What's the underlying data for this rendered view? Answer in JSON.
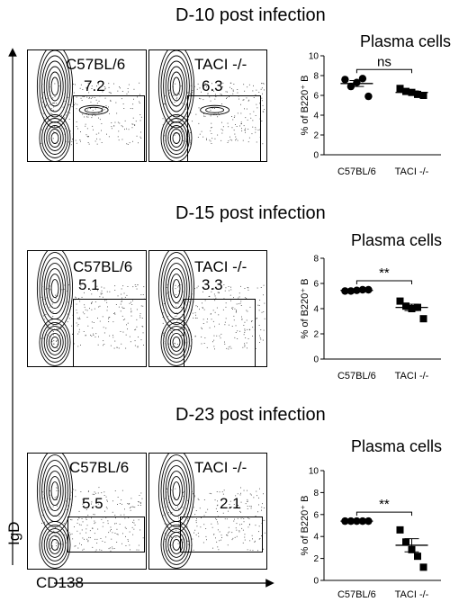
{
  "axes": {
    "y_label": "IgD",
    "x_label": "CD138"
  },
  "rows": [
    {
      "title": "D-10 post infection",
      "facs": [
        {
          "strain": "C57BL/6",
          "gate_value": "7.2"
        },
        {
          "strain": "TACI -/-",
          "gate_value": "6.3"
        }
      ],
      "plot": {
        "title": "Plasma cells",
        "significance": "ns"
      }
    },
    {
      "title": "D-15 post infection",
      "facs": [
        {
          "strain": "C57BL/6",
          "gate_value": "5.1"
        },
        {
          "strain": "TACI -/-",
          "gate_value": "3.3"
        }
      ],
      "plot": {
        "title": "Plasma cells",
        "significance": "**"
      }
    },
    {
      "title": "D-23 post infection",
      "facs": [
        {
          "strain": "C57BL/6",
          "gate_value": "5.5"
        },
        {
          "strain": "TACI -/-",
          "gate_value": "2.1"
        }
      ],
      "plot": {
        "title": "Plasma cells",
        "significance": "**"
      }
    }
  ],
  "chart_data": [
    {
      "type": "scatter",
      "title": "Plasma cells",
      "ylabel": "% of B220⁺ B",
      "categories": [
        "C57BL/6",
        "TACI -/-"
      ],
      "ylim": [
        0,
        10
      ],
      "yticks": [
        0,
        2,
        4,
        6,
        8,
        10
      ],
      "significance": "ns",
      "series": [
        {
          "name": "C57BL/6",
          "marker": "circle",
          "values": [
            7.6,
            6.9,
            7.3,
            7.7,
            5.9
          ],
          "mean": 7.2,
          "sem": 0.3
        },
        {
          "name": "TACI -/-",
          "marker": "square",
          "values": [
            6.7,
            6.4,
            6.3,
            6.1,
            6.0
          ],
          "mean": 6.3,
          "sem": 0.15
        }
      ]
    },
    {
      "type": "scatter",
      "title": "Plasma cells",
      "ylabel": "% of B220⁺ B",
      "categories": [
        "C57BL/6",
        "TACI -/-"
      ],
      "ylim": [
        0,
        8
      ],
      "yticks": [
        0,
        2,
        4,
        6,
        8
      ],
      "significance": "**",
      "series": [
        {
          "name": "C57BL/6",
          "marker": "circle",
          "values": [
            5.4,
            5.4,
            5.45,
            5.5,
            5.5
          ],
          "mean": 5.45,
          "sem": 0.05
        },
        {
          "name": "TACI -/-",
          "marker": "square",
          "values": [
            4.6,
            4.2,
            4.0,
            4.1,
            3.2
          ],
          "mean": 4.1,
          "sem": 0.25
        }
      ]
    },
    {
      "type": "scatter",
      "title": "Plasma cells",
      "ylabel": "% of B220⁺ B",
      "categories": [
        "C57BL/6",
        "TACI -/-"
      ],
      "ylim": [
        0,
        10
      ],
      "yticks": [
        0,
        2,
        4,
        6,
        8,
        10
      ],
      "significance": "**",
      "series": [
        {
          "name": "C57BL/6",
          "marker": "circle",
          "values": [
            5.4,
            5.4,
            5.4,
            5.4,
            5.4
          ],
          "mean": 5.4,
          "sem": 0.03
        },
        {
          "name": "TACI -/-",
          "marker": "square",
          "values": [
            4.6,
            3.5,
            2.8,
            2.2,
            1.2
          ],
          "mean": 3.2,
          "sem": 0.6
        }
      ]
    }
  ]
}
